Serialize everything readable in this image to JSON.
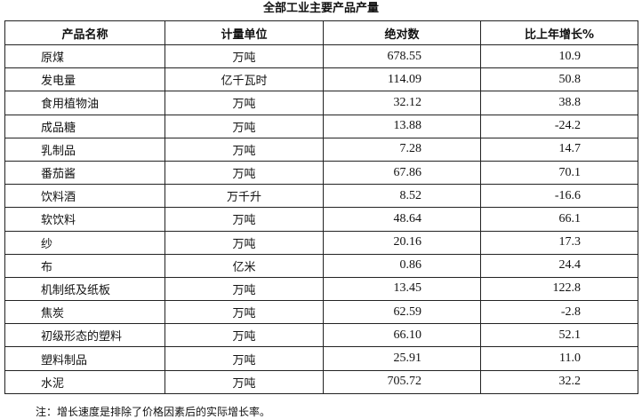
{
  "title": "全部工业主要产品产量",
  "headers": [
    "产品名称",
    "计量单位",
    "绝对数",
    "比上年增长%"
  ],
  "rows": [
    [
      "原煤",
      "万吨",
      "678.55",
      "10.9"
    ],
    [
      "发电量",
      "亿千瓦时",
      "114.09",
      "50.8"
    ],
    [
      "食用植物油",
      "万吨",
      "32.12",
      "38.8"
    ],
    [
      "成品糖",
      "万吨",
      "13.88",
      "-24.2"
    ],
    [
      "乳制品",
      "万吨",
      "7.28",
      "14.7"
    ],
    [
      "番茄酱",
      "万吨",
      "67.86",
      "70.1"
    ],
    [
      "饮料酒",
      "万千升",
      "8.52",
      "-16.6"
    ],
    [
      "软饮料",
      "万吨",
      "48.64",
      "66.1"
    ],
    [
      "纱",
      "万吨",
      "20.16",
      "17.3"
    ],
    [
      "布",
      "亿米",
      "0.86",
      "24.4"
    ],
    [
      "机制纸及纸板",
      "万吨",
      "13.45",
      "122.8"
    ],
    [
      "焦炭",
      "万吨",
      "62.59",
      "-2.8"
    ],
    [
      "初级形态的塑料",
      "万吨",
      "66.10",
      "52.1"
    ],
    [
      "塑料制品",
      "万吨",
      "25.91",
      "11.0"
    ],
    [
      "水泥",
      "万吨",
      "705.72",
      "32.2"
    ]
  ],
  "note": "注：增长速度是排除了价格因素后的实际增长率。"
}
